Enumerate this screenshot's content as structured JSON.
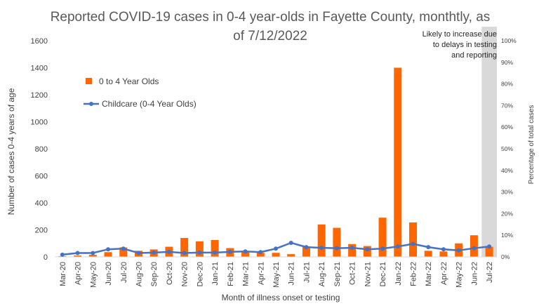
{
  "chart_data": {
    "type": "bar",
    "title_line1": "Reported COVID-19 cases in 0-4 year-olds in Fayette County, monthtly, as",
    "title_line2": "of 7/12/2022",
    "xlabel": "Month of illness onset or testing",
    "ylabel": "Number of cases 0-4 years of age",
    "y2label": "Percentage of total cases",
    "ylim": [
      0,
      1600
    ],
    "y2lim": [
      0,
      100
    ],
    "yticks": [
      "0",
      "200",
      "400",
      "600",
      "800",
      "1000",
      "1200",
      "1400",
      "1600"
    ],
    "y2ticks": [
      "0%",
      "10%",
      "20%",
      "30%",
      "40%",
      "50%",
      "60%",
      "70%",
      "80%",
      "90%",
      "100%"
    ],
    "categories": [
      "Mar-20",
      "Apr-20",
      "May-20",
      "Jun-20",
      "Jul-20",
      "Aug-20",
      "Sep-20",
      "Oct-20",
      "Nov-20",
      "Dec-20",
      "Jan-21",
      "Feb-21",
      "Mar-21",
      "Apr-21",
      "May-21",
      "Jun-21",
      "Jul-21",
      "Aug-21",
      "Sep-21",
      "Oct-21",
      "Nov-21",
      "Dec-21",
      "Jan-22",
      "Feb-22",
      "Mar-22",
      "Apr-22",
      "May-22",
      "Jun-22",
      "Jul-22"
    ],
    "series": [
      {
        "name": "0 to 4 Year Olds",
        "kind": "bar",
        "axis": "left",
        "color": "#ff6600",
        "values": [
          5,
          10,
          15,
          35,
          70,
          45,
          55,
          75,
          140,
          115,
          125,
          65,
          40,
          30,
          30,
          20,
          75,
          240,
          215,
          95,
          80,
          290,
          1400,
          255,
          45,
          40,
          100,
          160,
          75
        ]
      },
      {
        "name": "Childcare (0-4 Year Olds)",
        "kind": "line",
        "axis": "right",
        "color": "#4472c4",
        "values": [
          1.0,
          1.8,
          1.8,
          3.5,
          3.8,
          1.8,
          2.0,
          2.3,
          1.8,
          2.0,
          2.0,
          2.3,
          2.5,
          2.2,
          3.8,
          6.5,
          4.5,
          4.2,
          4.0,
          4.2,
          3.5,
          3.8,
          4.8,
          6.0,
          4.5,
          3.5,
          3.0,
          4.0,
          4.8
        ]
      }
    ],
    "shaded_region": {
      "from": "Jul-22",
      "to": "Jul-22",
      "color": "#d9d9d9"
    },
    "annotation": [
      "Likely to increase due",
      "to delays in testing",
      "and reporting"
    ],
    "legend_position": "top-left",
    "grid": false
  }
}
